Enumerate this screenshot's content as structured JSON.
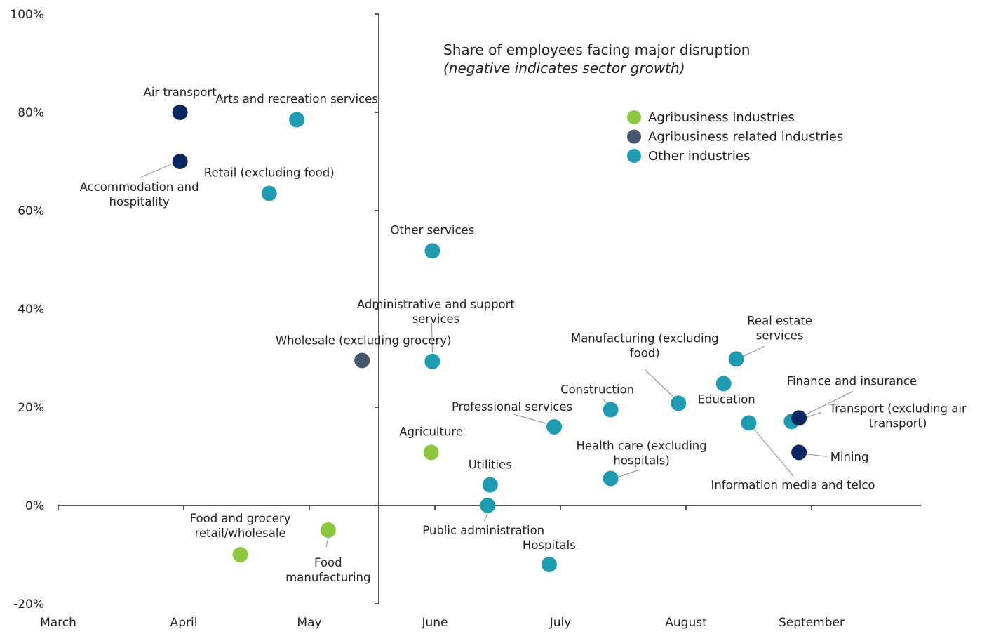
{
  "chart_data": {
    "type": "scatter",
    "title": "Share of employees facing major disruption",
    "subtitle": "(negative indicates sector growth)",
    "xlabel": "",
    "ylabel": "",
    "x_ticks": [
      "March",
      "April",
      "May",
      "June",
      "July",
      "August",
      "September"
    ],
    "xlim": [
      0,
      6.9
    ],
    "y_ticks": [
      "100%",
      "80%",
      "60%",
      "40%",
      "20%",
      "0%",
      "-20%"
    ],
    "ylim": [
      -20,
      100
    ],
    "legend_position": "top-right",
    "colors": {
      "Agribusiness industries": "#8dc63f",
      "Agribusiness related industries": "#465870",
      "Other industries": "#1f9bb1",
      "highlight": "#0c2660"
    },
    "legend": [
      "Agribusiness industries",
      "Agribusiness related industries",
      "Other industries"
    ],
    "points": [
      {
        "label": "Air transport",
        "category": "Agribusiness related industries",
        "dark": true,
        "x": 0.97,
        "y": 80
      },
      {
        "label": "Arts and recreation services",
        "category": "Other industries",
        "x": 1.9,
        "y": 78.5
      },
      {
        "label": "Accommodation and hospitality",
        "category": "Agribusiness related industries",
        "dark": true,
        "x": 0.97,
        "y": 70
      },
      {
        "label": "Retail (excluding food)",
        "category": "Other industries",
        "x": 1.68,
        "y": 63.5
      },
      {
        "label": "Other services",
        "category": "Other industries",
        "x": 2.98,
        "y": 51.8
      },
      {
        "label": "Administrative and support services",
        "category": "Other industries",
        "x": 2.98,
        "y": 29.3
      },
      {
        "label": "Wholesale (excluding grocery)",
        "category": "Agribusiness related industries",
        "x": 2.42,
        "y": 29.5
      },
      {
        "label": "Agriculture",
        "category": "Agribusiness industries",
        "x": 2.97,
        "y": 10.8
      },
      {
        "label": "Utilities",
        "category": "Other industries",
        "x": 3.44,
        "y": 4.2
      },
      {
        "label": "Public administration",
        "category": "Other industries",
        "x": 3.42,
        "y": 0
      },
      {
        "label": "Professional services",
        "category": "Other industries",
        "x": 3.95,
        "y": 16
      },
      {
        "label": "Hospitals",
        "category": "Other industries",
        "x": 3.91,
        "y": -12
      },
      {
        "label": "Construction",
        "category": "Other industries",
        "x": 4.4,
        "y": 19.5
      },
      {
        "label": "Health care (excluding hospitals)",
        "category": "Other industries",
        "x": 4.4,
        "y": 5.5
      },
      {
        "label": "Manufacturing (excluding food)",
        "category": "Other industries",
        "x": 4.94,
        "y": 20.8
      },
      {
        "label": "Real estate services",
        "category": "Other industries",
        "x": 5.4,
        "y": 29.8
      },
      {
        "label": "Education",
        "category": "Other industries",
        "x": 5.3,
        "y": 24.8
      },
      {
        "label": "Information media and telco",
        "category": "Other industries",
        "x": 5.5,
        "y": 16.8
      },
      {
        "label": "Finance and insurance",
        "category": "Other industries",
        "x": 5.84,
        "y": 17.1
      },
      {
        "label": "Transport (excluding air transport)",
        "category": "Agribusiness related industries",
        "dark": true,
        "x": 5.9,
        "y": 17.8
      },
      {
        "label": "Mining",
        "category": "Agribusiness related industries",
        "dark": true,
        "x": 5.9,
        "y": 10.8
      },
      {
        "label": "Food and grocery retail/wholesale",
        "category": "Agribusiness industries",
        "x": 1.45,
        "y": -10
      },
      {
        "label": "Food manufacturing",
        "category": "Agribusiness industries",
        "x": 2.15,
        "y": -5
      }
    ]
  }
}
